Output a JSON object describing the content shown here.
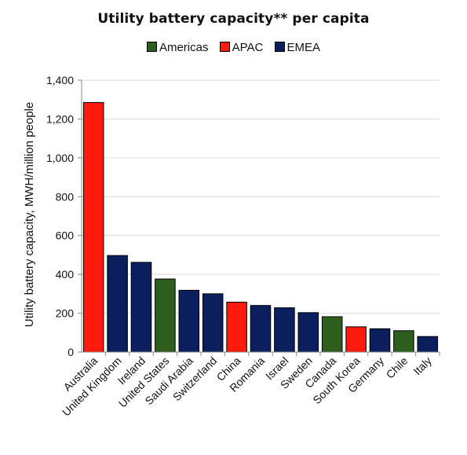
{
  "chart_data": {
    "type": "bar",
    "title": "Utility battery capacity** per capita",
    "ylabel": "Utility battery capacity, MWH/million people",
    "xlabel": "",
    "ylim": [
      0,
      1400
    ],
    "yticks": [
      "0",
      "200",
      "400",
      "600",
      "800",
      "1,000",
      "1,200",
      "1,400"
    ],
    "ytick_values": [
      0,
      200,
      400,
      600,
      800,
      1000,
      1200,
      1400
    ],
    "grid": true,
    "legend_position": "top",
    "legend": [
      {
        "name": "Americas",
        "color": "#2e5e1e"
      },
      {
        "name": "APAC",
        "color": "#ff1a0e"
      },
      {
        "name": "EMEA",
        "color": "#0b1f5e"
      }
    ],
    "categories": [
      "Australia",
      "United Kingdom",
      "Ireland",
      "United States",
      "Saudi Arabia",
      "Switzerland",
      "China",
      "Romania",
      "Israel",
      "Sweden",
      "Canada",
      "South Korea",
      "Germany",
      "Chile",
      "Italy"
    ],
    "values": [
      1285,
      497,
      462,
      376,
      318,
      300,
      257,
      240,
      228,
      203,
      182,
      130,
      120,
      110,
      80
    ],
    "regions": [
      "APAC",
      "EMEA",
      "EMEA",
      "Americas",
      "EMEA",
      "EMEA",
      "APAC",
      "EMEA",
      "EMEA",
      "EMEA",
      "Americas",
      "APAC",
      "EMEA",
      "Americas",
      "EMEA"
    ]
  }
}
